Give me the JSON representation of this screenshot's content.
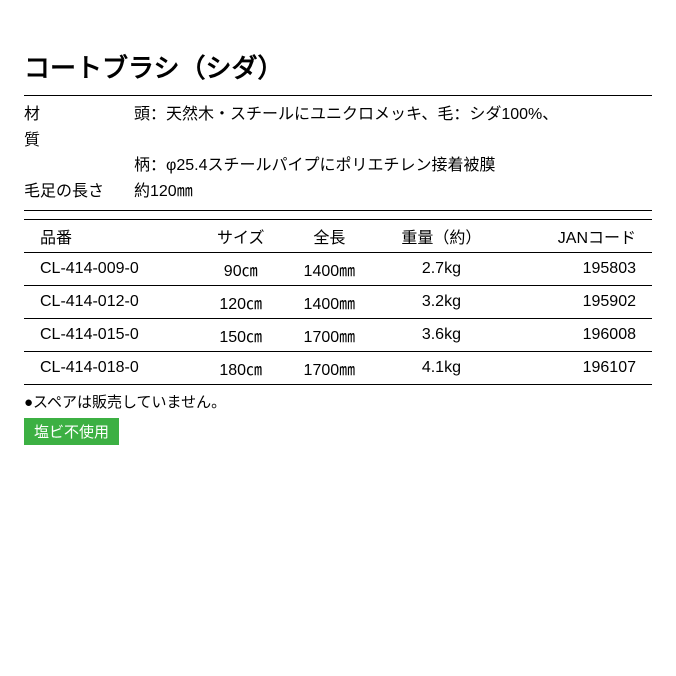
{
  "title": "コートブラシ（シダ）",
  "specs": {
    "material_label": "材　　　質",
    "material_value_1": "頭：天然木・スチールにユニクロメッキ、毛：シダ100%、",
    "material_value_2": "柄：φ25.4スチールパイプにポリエチレン接着被膜",
    "bristle_label": "毛足の長さ",
    "bristle_value": "約120㎜"
  },
  "table": {
    "headers": {
      "code": "品番",
      "size": "サイズ",
      "length": "全長",
      "weight": "重量（約）",
      "jan": "JANコード"
    },
    "rows": [
      {
        "code": "CL-414-009-0",
        "size": "90㎝",
        "length": "1400㎜",
        "weight": "2.7kg",
        "jan": "195803"
      },
      {
        "code": "CL-414-012-0",
        "size": "120㎝",
        "length": "1400㎜",
        "weight": "3.2kg",
        "jan": "195902"
      },
      {
        "code": "CL-414-015-0",
        "size": "150㎝",
        "length": "1700㎜",
        "weight": "3.6kg",
        "jan": "196008"
      },
      {
        "code": "CL-414-018-0",
        "size": "180㎝",
        "length": "1700㎜",
        "weight": "4.1kg",
        "jan": "196107"
      }
    ]
  },
  "note": "●スペアは販売していません。",
  "badge": "塩ビ不使用",
  "colors": {
    "badge_bg": "#3cb043",
    "badge_text": "#ffffff",
    "text": "#000000",
    "background": "#ffffff",
    "border": "#000000"
  }
}
